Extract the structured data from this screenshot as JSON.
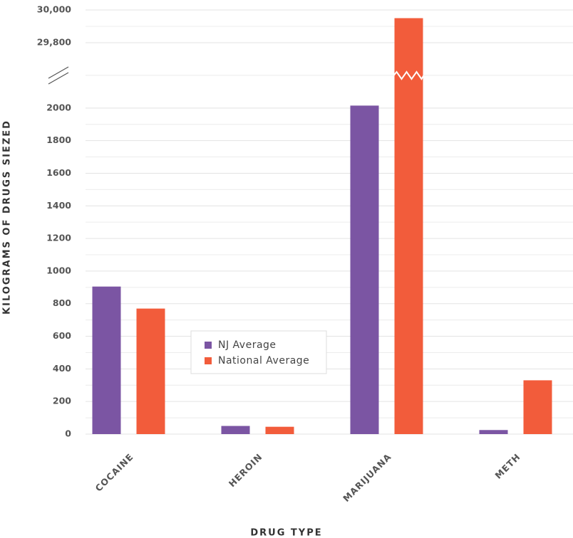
{
  "chart_data": {
    "type": "bar",
    "y_label": "KILOGRAMS OF DRUGS SIEZED",
    "x_label": "DRUG TYPE",
    "categories": [
      "COCAINE",
      "HEROIN",
      "MARIJUANA",
      "METH"
    ],
    "series": [
      {
        "name": "NJ Average",
        "color": "#7b55a3",
        "values": [
          905,
          50,
          2015,
          25
        ]
      },
      {
        "name": "National Average",
        "color": "#f25c3b",
        "values": [
          770,
          45,
          29950,
          330
        ]
      }
    ],
    "ylim": [
      0,
      30000
    ],
    "axis_break": [
      2200,
      29600
    ],
    "yticks": [
      0,
      200,
      400,
      600,
      800,
      1000,
      1200,
      1400,
      1600,
      1800,
      2000,
      {
        "value": 29800,
        "label": "29,800"
      },
      {
        "value": 30000,
        "label": "30,000"
      }
    ],
    "grid": true,
    "legend_position": "center"
  }
}
